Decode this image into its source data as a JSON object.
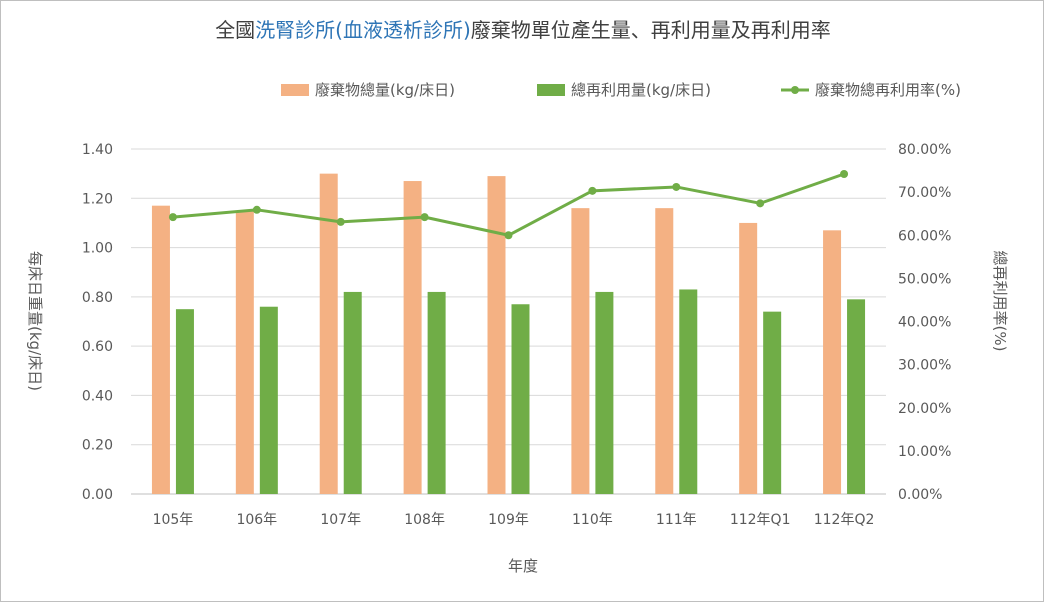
{
  "chart_data": {
    "type": "bar",
    "title_parts": [
      "全國",
      "洗腎診所(血液透析診所)",
      "廢棄物單位產生量、再利用量及再利用率"
    ],
    "title": "全國洗腎診所(血液透析診所)廢棄物單位產生量、再利用量及再利用率",
    "xlabel": "年度",
    "ylabel": "每床日重量(kg/床日)",
    "y2label": "總再利用率(%)",
    "categories": [
      "105年",
      "106年",
      "107年",
      "108年",
      "109年",
      "110年",
      "111年",
      "112年Q1",
      "112年Q2"
    ],
    "ylim": [
      0,
      1.4
    ],
    "y_ticks": [
      "0.00",
      "0.20",
      "0.40",
      "0.60",
      "0.80",
      "1.00",
      "1.20",
      "1.40"
    ],
    "y2lim": [
      0,
      80
    ],
    "y2_ticks": [
      "0.00%",
      "10.00%",
      "20.00%",
      "30.00%",
      "40.00%",
      "50.00%",
      "60.00%",
      "70.00%",
      "80.00%"
    ],
    "legend_position": "top",
    "gridlines": true,
    "series": [
      {
        "name": "廢棄物總量(kg/床日)",
        "type": "bar",
        "axis": "left",
        "color": "#f4b183",
        "values": [
          1.17,
          1.15,
          1.3,
          1.27,
          1.29,
          1.16,
          1.16,
          1.1,
          1.07
        ]
      },
      {
        "name": "總再利用量(kg/床日)",
        "type": "bar",
        "axis": "left",
        "color": "#70ad47",
        "values": [
          0.75,
          0.76,
          0.82,
          0.82,
          0.77,
          0.82,
          0.83,
          0.74,
          0.79
        ]
      },
      {
        "name": "廢棄物總再利用率(%)",
        "type": "line",
        "axis": "right",
        "color": "#70ad47",
        "values": [
          64.2,
          65.9,
          63.1,
          64.2,
          60.0,
          70.3,
          71.2,
          67.4,
          74.2
        ]
      }
    ]
  }
}
